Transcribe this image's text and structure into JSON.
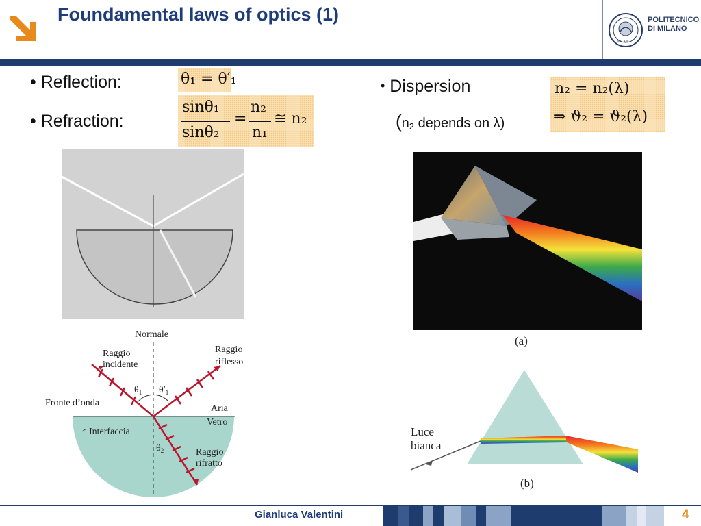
{
  "header": {
    "title": "Foundamental laws of optics (1)",
    "institution_line1": "POLITECNICO",
    "institution_line2": "DI MILANO",
    "seal_text": "MILANO"
  },
  "bullets": {
    "reflection": {
      "label": "Reflection:",
      "formula": "θ₁ = θ′₁"
    },
    "refraction": {
      "label": "Refraction:",
      "num": "sinθ₁",
      "den": "sinθ₂",
      "eq": "=",
      "frac_num": "n₂",
      "frac_den": "n₁",
      "approx": "≅ n₂"
    },
    "dispersion": {
      "label": "Dispersion",
      "note_open": "(",
      "note_n": "n",
      "note_sub": "2",
      "note_rest": " depends on λ)",
      "formula_line1": "n₂ = n₂(λ)",
      "formula_line2": "⇒ ϑ₂ = ϑ₂(λ)"
    }
  },
  "figures": {
    "refraction_diagram": {
      "normale": "Normale",
      "raggio_incidente_1": "Raggio",
      "raggio_incidente_2": "incidente",
      "raggio_riflesso_1": "Raggio",
      "raggio_riflesso_2": "riflesso",
      "fronte": "Fronte d’onda",
      "theta1": "θ",
      "theta1_sub": "1",
      "theta1p": "θ′",
      "theta1p_sub": "1",
      "aria": "Aria",
      "vetro": "Vetro",
      "interfaccia": "Interfaccia",
      "theta2": "θ",
      "theta2_sub": "2",
      "raggio_rifratto_1": "Raggio",
      "raggio_rifratto_2": "rifratto"
    },
    "prism_photo": {
      "caption": "(a)"
    },
    "prism_diagram": {
      "luce_1": "Luce",
      "luce_2": "bianca",
      "caption": "(b)"
    }
  },
  "footer": {
    "author": "Gianluca Valentini",
    "page": "4"
  },
  "colors": {
    "accent": "#e8891c",
    "brand": "#1f3c6e",
    "math_bg": "#fbe2b6"
  }
}
